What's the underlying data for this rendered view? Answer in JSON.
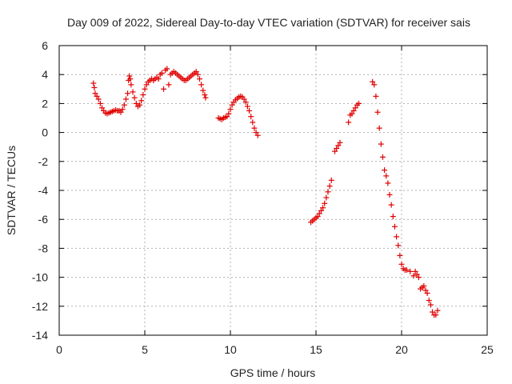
{
  "chart_data": {
    "type": "scatter",
    "title": "Day 009 of 2022, Sidereal Day-to-day VTEC variation (SDTVAR) for receiver sais",
    "xlabel": "GPS time / hours",
    "ylabel": "SDTVAR / TECUs",
    "xlim": [
      0,
      25
    ],
    "ylim": [
      -14,
      6
    ],
    "xticks": [
      0,
      5,
      10,
      15,
      20,
      25
    ],
    "yticks": [
      -14,
      -12,
      -10,
      -8,
      -6,
      -4,
      -2,
      0,
      2,
      4,
      6
    ],
    "grid": true,
    "marker": "plus",
    "color": "#e00000",
    "series": [
      {
        "points": [
          [
            2.0,
            3.4
          ],
          [
            2.05,
            3.1
          ],
          [
            2.1,
            2.7
          ],
          [
            2.2,
            2.5
          ],
          [
            2.3,
            2.3
          ],
          [
            2.4,
            2.0
          ],
          [
            2.5,
            1.7
          ],
          [
            2.6,
            1.5
          ],
          [
            2.7,
            1.35
          ],
          [
            2.8,
            1.3
          ],
          [
            2.9,
            1.35
          ],
          [
            3.0,
            1.4
          ],
          [
            3.1,
            1.45
          ],
          [
            3.2,
            1.5
          ],
          [
            3.3,
            1.55
          ],
          [
            3.4,
            1.5
          ],
          [
            3.5,
            1.5
          ],
          [
            3.6,
            1.4
          ],
          [
            3.7,
            1.6
          ],
          [
            3.8,
            1.9
          ],
          [
            3.9,
            2.3
          ],
          [
            4.0,
            2.7
          ],
          [
            4.05,
            3.6
          ],
          [
            4.1,
            3.9
          ],
          [
            4.15,
            3.7
          ],
          [
            4.2,
            3.3
          ],
          [
            4.3,
            2.8
          ],
          [
            4.4,
            2.4
          ],
          [
            4.5,
            2.0
          ],
          [
            4.6,
            1.8
          ],
          [
            4.7,
            1.9
          ],
          [
            4.8,
            2.2
          ],
          [
            4.9,
            2.6
          ],
          [
            5.0,
            3.0
          ],
          [
            5.1,
            3.3
          ],
          [
            5.2,
            3.5
          ],
          [
            5.3,
            3.6
          ],
          [
            5.4,
            3.7
          ],
          [
            5.5,
            3.6
          ],
          [
            5.6,
            3.7
          ],
          [
            5.7,
            3.8
          ],
          [
            5.8,
            3.7
          ],
          [
            5.9,
            4.0
          ],
          [
            6.0,
            4.1
          ],
          [
            6.1,
            3.0
          ],
          [
            6.2,
            4.3
          ],
          [
            6.3,
            4.4
          ],
          [
            6.4,
            3.3
          ],
          [
            6.5,
            4.0
          ],
          [
            6.6,
            4.1
          ],
          [
            6.7,
            4.2
          ],
          [
            6.8,
            4.1
          ],
          [
            6.9,
            4.0
          ],
          [
            7.0,
            3.9
          ],
          [
            7.1,
            3.8
          ],
          [
            7.2,
            3.7
          ],
          [
            7.3,
            3.6
          ],
          [
            7.4,
            3.6
          ],
          [
            7.5,
            3.7
          ],
          [
            7.6,
            3.8
          ],
          [
            7.7,
            3.9
          ],
          [
            7.8,
            4.0
          ],
          [
            7.9,
            4.1
          ],
          [
            8.0,
            4.2
          ],
          [
            8.1,
            4.0
          ],
          [
            8.2,
            3.7
          ],
          [
            8.3,
            3.3
          ],
          [
            8.4,
            2.9
          ],
          [
            8.5,
            2.6
          ],
          [
            8.55,
            2.4
          ],
          [
            9.3,
            1.0
          ],
          [
            9.4,
            0.95
          ],
          [
            9.5,
            0.9
          ],
          [
            9.6,
            1.0
          ],
          [
            9.7,
            1.05
          ],
          [
            9.8,
            1.1
          ],
          [
            9.9,
            1.3
          ],
          [
            10.0,
            1.6
          ],
          [
            10.1,
            1.9
          ],
          [
            10.2,
            2.1
          ],
          [
            10.3,
            2.25
          ],
          [
            10.4,
            2.35
          ],
          [
            10.5,
            2.45
          ],
          [
            10.6,
            2.5
          ],
          [
            10.7,
            2.45
          ],
          [
            10.8,
            2.3
          ],
          [
            10.9,
            2.1
          ],
          [
            11.0,
            1.8
          ],
          [
            11.1,
            1.5
          ],
          [
            11.2,
            1.1
          ],
          [
            11.3,
            0.7
          ],
          [
            11.4,
            0.3
          ],
          [
            11.5,
            0.0
          ],
          [
            11.6,
            -0.2
          ],
          [
            14.7,
            -6.2
          ],
          [
            14.8,
            -6.1
          ],
          [
            14.9,
            -6.0
          ],
          [
            15.0,
            -5.9
          ],
          [
            15.1,
            -5.8
          ],
          [
            15.2,
            -5.6
          ],
          [
            15.3,
            -5.4
          ],
          [
            15.4,
            -5.2
          ],
          [
            15.5,
            -4.9
          ],
          [
            15.6,
            -4.5
          ],
          [
            15.7,
            -4.1
          ],
          [
            15.8,
            -3.7
          ],
          [
            15.9,
            -3.3
          ],
          [
            16.1,
            -1.3
          ],
          [
            16.2,
            -1.1
          ],
          [
            16.3,
            -0.9
          ],
          [
            16.4,
            -0.7
          ],
          [
            16.9,
            0.7
          ],
          [
            17.0,
            1.2
          ],
          [
            17.1,
            1.3
          ],
          [
            17.2,
            1.5
          ],
          [
            17.3,
            1.7
          ],
          [
            17.4,
            1.9
          ],
          [
            17.5,
            2.0
          ],
          [
            18.3,
            3.5
          ],
          [
            18.4,
            3.3
          ],
          [
            18.5,
            2.5
          ],
          [
            18.6,
            1.4
          ],
          [
            18.7,
            0.3
          ],
          [
            18.8,
            -0.8
          ],
          [
            18.9,
            -1.7
          ],
          [
            19.0,
            -2.6
          ],
          [
            19.1,
            -3.0
          ],
          [
            19.2,
            -3.5
          ],
          [
            19.3,
            -4.3
          ],
          [
            19.4,
            -5.0
          ],
          [
            19.5,
            -5.8
          ],
          [
            19.6,
            -6.5
          ],
          [
            19.7,
            -7.2
          ],
          [
            19.8,
            -7.8
          ],
          [
            19.9,
            -8.5
          ],
          [
            20.0,
            -9.1
          ],
          [
            20.1,
            -9.4
          ],
          [
            20.2,
            -9.5
          ],
          [
            20.3,
            -9.5
          ],
          [
            20.5,
            -9.6
          ],
          [
            20.7,
            -9.9
          ],
          [
            20.8,
            -9.6
          ],
          [
            20.9,
            -9.8
          ],
          [
            21.0,
            -10.0
          ],
          [
            21.1,
            -10.8
          ],
          [
            21.2,
            -10.7
          ],
          [
            21.3,
            -10.6
          ],
          [
            21.4,
            -10.9
          ],
          [
            21.5,
            -11.1
          ],
          [
            21.6,
            -11.6
          ],
          [
            21.7,
            -11.9
          ],
          [
            21.8,
            -12.4
          ],
          [
            21.9,
            -12.6
          ],
          [
            22.0,
            -12.6
          ],
          [
            22.1,
            -12.3
          ]
        ]
      }
    ]
  }
}
